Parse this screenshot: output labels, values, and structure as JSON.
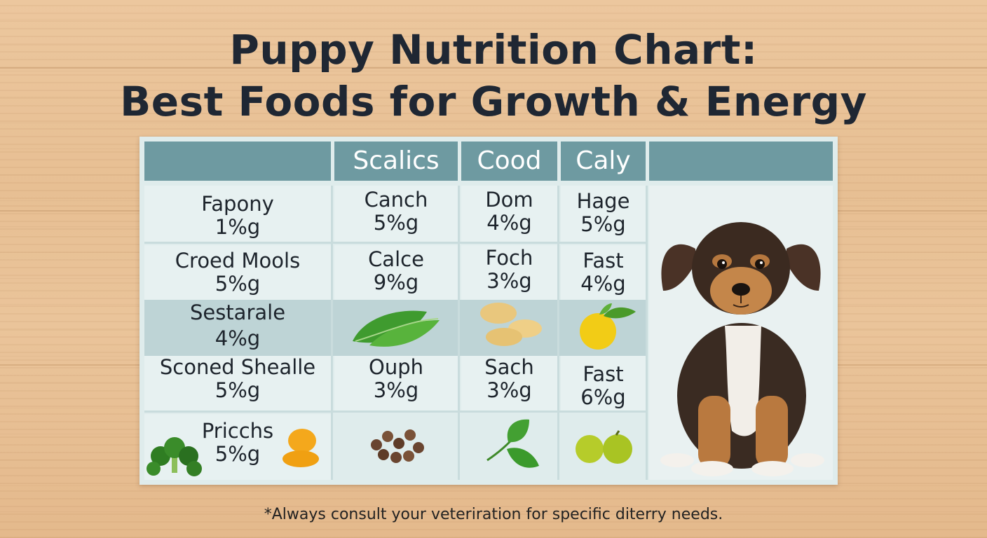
{
  "title": {
    "line1": "Puppy Nutrition Chart:",
    "line2": "Best Foods for Growth & Energy"
  },
  "table": {
    "headers": [
      "",
      "Scalics",
      "Cood",
      "Caly",
      ""
    ],
    "rows": [
      {
        "cells": [
          {
            "name": "Fapony",
            "value": "1%g"
          },
          {
            "name": "Canch",
            "value": "5%g"
          },
          {
            "name": "Dom",
            "value": "4%g"
          },
          {
            "name": "Hage",
            "value": "5%g"
          }
        ]
      },
      {
        "cells": [
          {
            "name": "Croed Mools",
            "value": "5%g"
          },
          {
            "name": "Calce",
            "value": "9%g"
          },
          {
            "name": "Foch",
            "value": "3%g"
          },
          {
            "name": "Fast",
            "value": "4%g"
          }
        ]
      },
      {
        "cells": [
          {
            "name": "Sestarale",
            "value": "4%g"
          }
        ]
      },
      {
        "cells": [
          {
            "name": "Sconed Shealle",
            "value": "5%g"
          },
          {
            "name": "Ouph",
            "value": "3%g"
          },
          {
            "name": "Sach",
            "value": "3%g"
          },
          {
            "name": "Fast",
            "value": "6%g"
          }
        ]
      },
      {
        "cells": [
          {
            "name": "Pricchs",
            "value": "5%g"
          }
        ]
      }
    ],
    "food_icons": [
      "spinach-leaf-icon",
      "cracker-icon",
      "lemon-icon",
      "broccoli-icon",
      "apricot-icon",
      "kibble-icon",
      "leaf-sprig-icon",
      "green-apples-icon"
    ]
  },
  "footnote": "*Always consult your veteriration for specific diterry needs.",
  "colors": {
    "header_bg": "#6e9aa1",
    "header_text": "#ffffff",
    "cell_bg": "#e7f1f1",
    "band_bg": "#bed4d6",
    "title_text": "#1f2733"
  }
}
